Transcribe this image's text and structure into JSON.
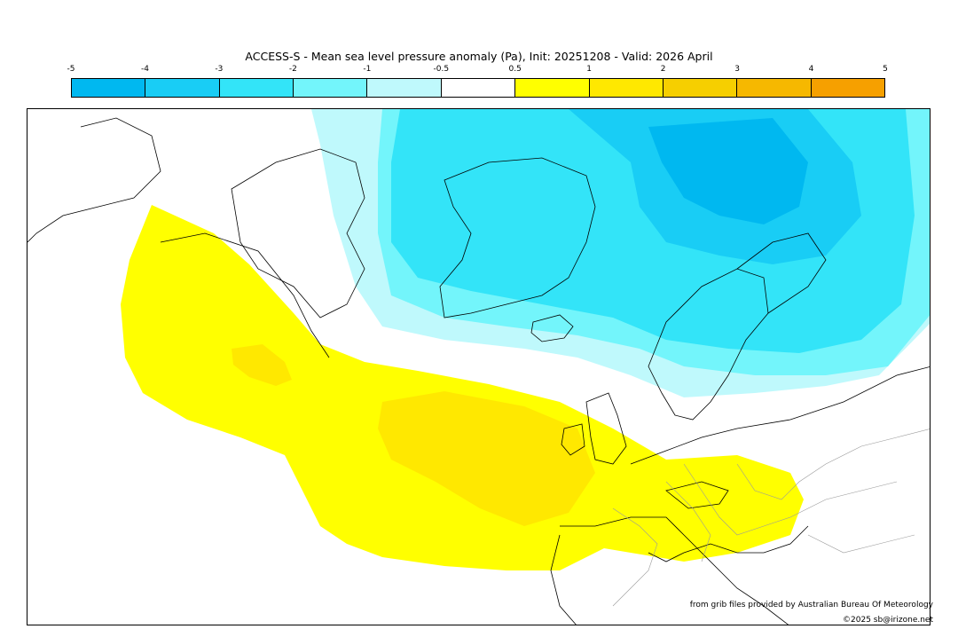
{
  "title": "ACCESS-S - Mean sea level pressure anomaly (Pa), Init: 20251208 - Valid: 2026 April",
  "colorbar": {
    "ticks": [
      "-5",
      "-4",
      "-3",
      "-2",
      "-1",
      "-0.5",
      "0.5",
      "1",
      "2",
      "3",
      "4",
      "5"
    ],
    "colors": [
      "#00b8f0",
      "#19cdf5",
      "#33e4f8",
      "#73f5fb",
      "#bff9fc",
      "#ffffff",
      "#ffff00",
      "#ffe800",
      "#f6cf00",
      "#f6b800",
      "#f6a000"
    ]
  },
  "credits": {
    "line1": "from grib files provided by Australian Bureau Of Meteorology",
    "line2": "©2025 sb@irizone.net"
  }
}
